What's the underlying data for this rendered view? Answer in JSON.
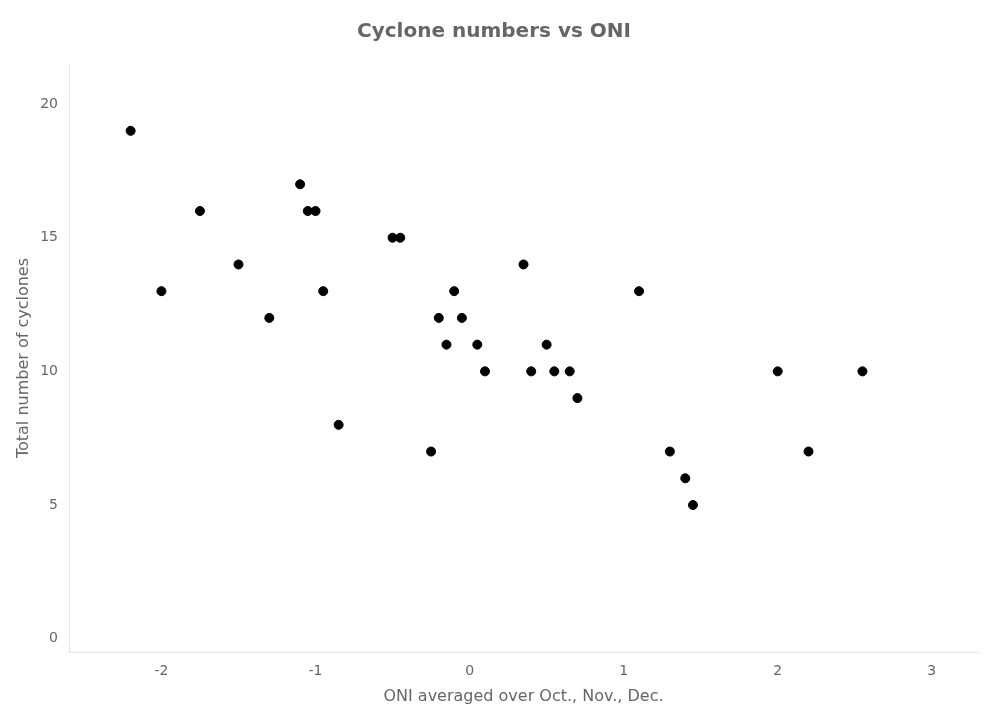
{
  "chart_data": {
    "type": "scatter",
    "title": "Cyclone numbers vs ONI",
    "xlabel": "ONI averaged over Oct., Nov., Dec.",
    "ylabel": "Total number of cyclones",
    "x": [
      -2.2,
      -2.0,
      -1.75,
      -1.5,
      -1.3,
      -1.1,
      -1.05,
      -1.0,
      -0.95,
      -0.85,
      -0.5,
      -0.45,
      -0.25,
      -0.2,
      -0.15,
      -0.1,
      -0.05,
      0.05,
      0.1,
      0.35,
      0.4,
      0.5,
      0.55,
      0.65,
      0.7,
      1.1,
      1.3,
      1.4,
      1.45,
      2.0,
      2.2,
      2.55
    ],
    "values": [
      19,
      13,
      16,
      14,
      12,
      17,
      16,
      16,
      13,
      8,
      15,
      15,
      7,
      12,
      11,
      13,
      12,
      11,
      10,
      14,
      10,
      11,
      10,
      10,
      9,
      13,
      7,
      6,
      5,
      10,
      7,
      10
    ],
    "color": "black",
    "xlim": [
      -2.6,
      3.3
    ],
    "ylim": [
      -0.5,
      21.5
    ],
    "xticks": [
      -2,
      -1,
      0,
      1,
      2,
      3
    ],
    "yticks": [
      0,
      5,
      10,
      15,
      20
    ],
    "grid": false
  }
}
